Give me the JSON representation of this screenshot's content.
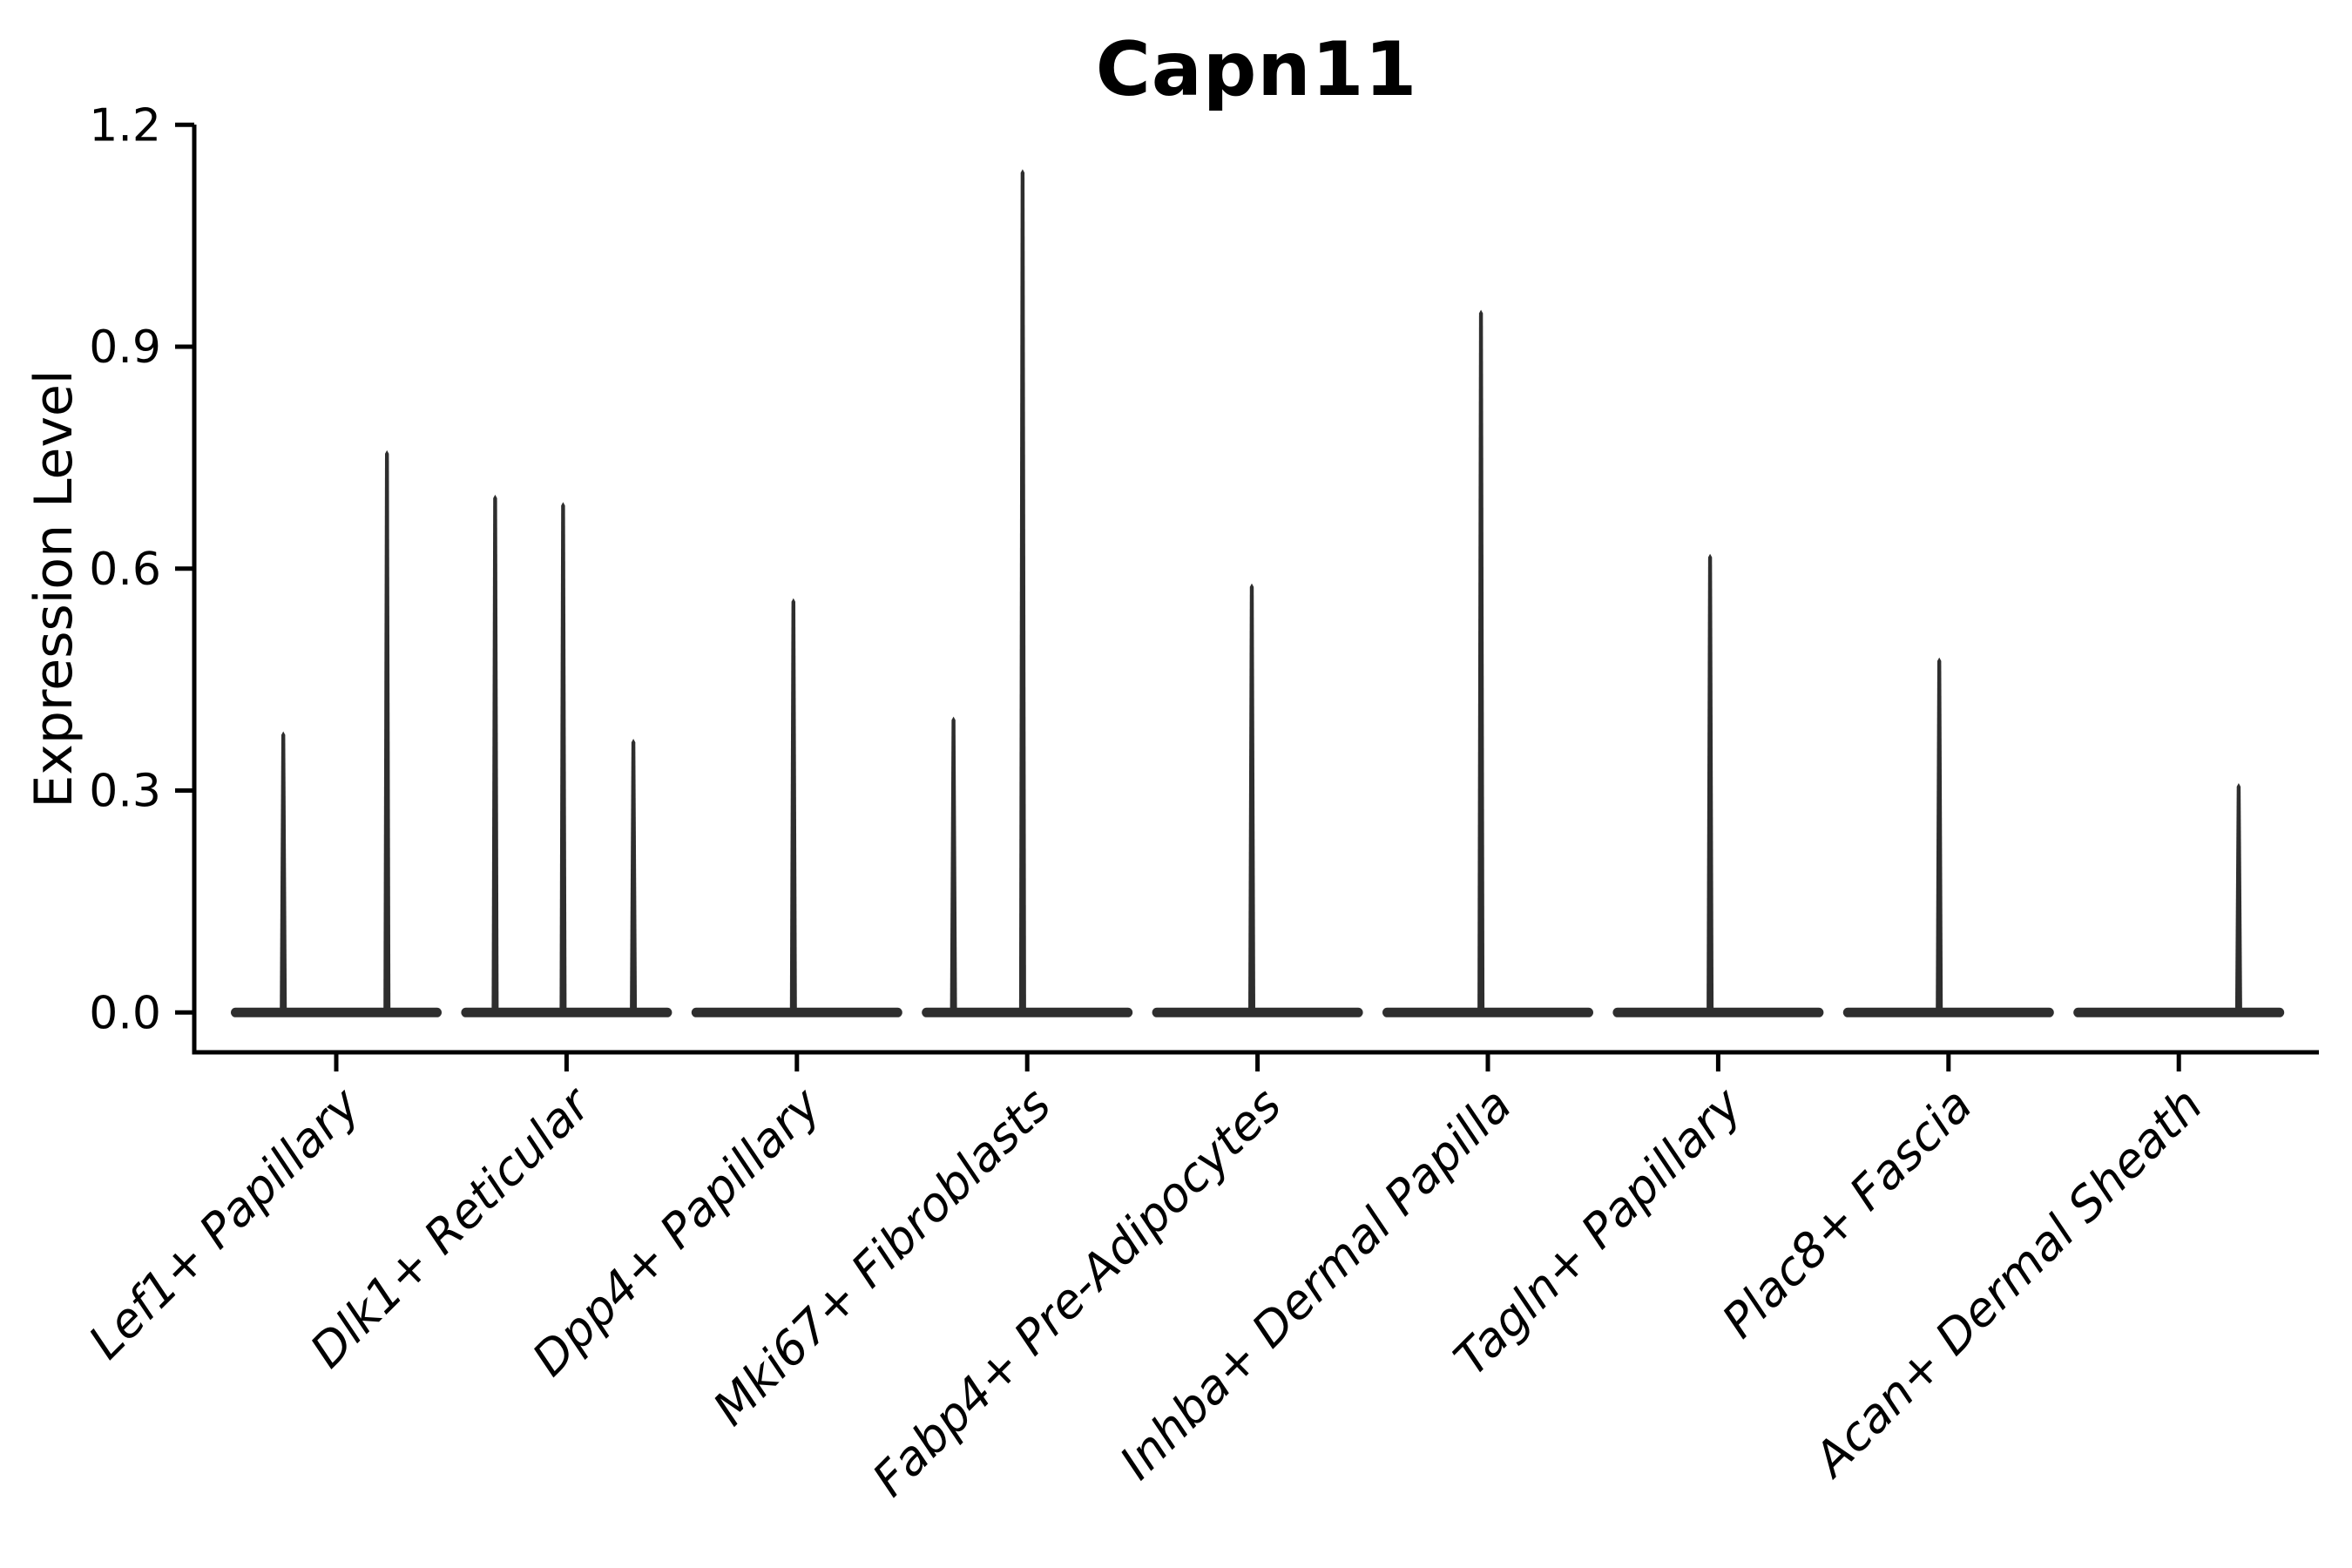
{
  "chart_data": {
    "type": "violin",
    "title": "Capn11",
    "ylabel": "Expression Level",
    "xlabel": "",
    "ylim": [
      -0.05,
      1.2
    ],
    "yticks": [
      "0.0",
      "0.3",
      "0.6",
      "0.9",
      "1.2"
    ],
    "ytick_values": [
      0.0,
      0.3,
      0.6,
      0.9,
      1.2
    ],
    "grid": false,
    "legend": false,
    "violin_color": "#2e2e2e",
    "axis_color": "#000000",
    "categories": [
      "Lef1+ Papillary",
      "Dlk1+ Reticular",
      "Dpp4+ Papillary",
      "Mki67+ Fibroblasts",
      "Fabp4+ Pre-Adipocytes",
      "Inhba+ Dermal Papilla",
      "Tagln+ Papillary",
      "Plac8+ Fascia",
      "Acan+ Dermal Sheath"
    ],
    "description": "Violin plot of Capn11 expression; density is concentrated at 0 (flat dark bar) with thin spikes reaching each subgroup's maximum expression value.",
    "groups": [
      {
        "category": "Lef1+ Papillary",
        "spikes": [
          {
            "dx": -0.23,
            "max": 0.38
          },
          {
            "dx": 0.22,
            "max": 0.76
          }
        ]
      },
      {
        "category": "Dlk1+ Reticular",
        "spikes": [
          {
            "dx": -0.31,
            "max": 0.7
          },
          {
            "dx": -0.015,
            "max": 0.69
          },
          {
            "dx": 0.29,
            "max": 0.37
          }
        ]
      },
      {
        "category": "Dpp4+ Papillary",
        "spikes": [
          {
            "dx": -0.015,
            "max": 0.56
          }
        ]
      },
      {
        "category": "Mki67+ Fibroblasts",
        "spikes": [
          {
            "dx": -0.32,
            "max": 0.4
          },
          {
            "dx": -0.02,
            "max": 1.14
          }
        ]
      },
      {
        "category": "Fabp4+ Pre-Adipocytes",
        "spikes": [
          {
            "dx": -0.025,
            "max": 0.58
          }
        ]
      },
      {
        "category": "Inhba+ Dermal Papilla",
        "spikes": [
          {
            "dx": -0.03,
            "max": 0.95
          }
        ]
      },
      {
        "category": "Tagln+ Papillary",
        "spikes": [
          {
            "dx": -0.035,
            "max": 0.62
          }
        ]
      },
      {
        "category": "Plac8+ Fascia",
        "spikes": [
          {
            "dx": -0.04,
            "max": 0.48
          }
        ]
      },
      {
        "category": "Acan+ Dermal Sheath",
        "spikes": [
          {
            "dx": 0.26,
            "max": 0.31
          }
        ]
      }
    ]
  }
}
